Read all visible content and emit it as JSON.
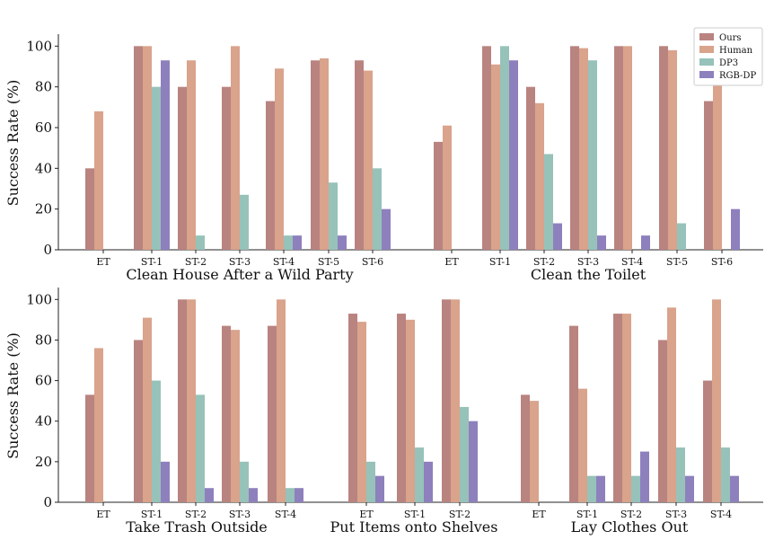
{
  "chart_data": [
    {
      "type": "bar",
      "ylabel": "Success Rate (%)",
      "ylim": [
        0,
        105
      ],
      "yticks": [
        0,
        20,
        40,
        60,
        80,
        100
      ],
      "legend": {
        "placement": "top-right",
        "entries": [
          "Ours",
          "Human",
          "DP3",
          "RGB-DP"
        ]
      },
      "series_colors": [
        "#b98380",
        "#d9a38c",
        "#96c2b9",
        "#8e80bd"
      ],
      "tasks": [
        {
          "title": "Clean House After a Wild Party",
          "categories": [
            "ET",
            "ST-1",
            "ST-2",
            "ST-3",
            "ST-4",
            "ST-5",
            "ST-6"
          ],
          "series": [
            {
              "name": "Ours",
              "values": [
                40,
                100,
                80,
                80,
                73,
                93,
                93
              ]
            },
            {
              "name": "Human",
              "values": [
                68,
                100,
                93,
                100,
                89,
                94,
                88
              ]
            },
            {
              "name": "DP3",
              "values": [
                null,
                80,
                7,
                27,
                7,
                33,
                40
              ]
            },
            {
              "name": "RGB-DP",
              "values": [
                null,
                93,
                0,
                0,
                7,
                7,
                20
              ]
            }
          ]
        },
        {
          "title": "Clean the Toilet",
          "categories": [
            "ET",
            "ST-1",
            "ST-2",
            "ST-3",
            "ST-4",
            "ST-5",
            "ST-6"
          ],
          "series": [
            {
              "name": "Ours",
              "values": [
                53,
                100,
                80,
                100,
                100,
                100,
                73
              ]
            },
            {
              "name": "Human",
              "values": [
                61,
                91,
                72,
                99,
                100,
                98,
                100
              ]
            },
            {
              "name": "DP3",
              "values": [
                null,
                100,
                47,
                93,
                0,
                13,
                0
              ]
            },
            {
              "name": "RGB-DP",
              "values": [
                null,
                93,
                13,
                7,
                7,
                0,
                20
              ]
            }
          ]
        },
        {
          "title": "Take Trash Outside",
          "categories": [
            "ET",
            "ST-1",
            "ST-2",
            "ST-3",
            "ST-4"
          ],
          "series": [
            {
              "name": "Ours",
              "values": [
                53,
                80,
                100,
                87,
                87
              ]
            },
            {
              "name": "Human",
              "values": [
                76,
                91,
                100,
                85,
                100
              ]
            },
            {
              "name": "DP3",
              "values": [
                null,
                60,
                53,
                20,
                7
              ]
            },
            {
              "name": "RGB-DP",
              "values": [
                null,
                20,
                7,
                7,
                7
              ]
            }
          ]
        },
        {
          "title": "Put Items onto Shelves",
          "categories": [
            "ET",
            "ST-1",
            "ST-2"
          ],
          "series": [
            {
              "name": "Ours",
              "values": [
                93,
                93,
                100
              ]
            },
            {
              "name": "Human",
              "values": [
                89,
                90,
                100
              ]
            },
            {
              "name": "DP3",
              "values": [
                20,
                27,
                47
              ]
            },
            {
              "name": "RGB-DP",
              "values": [
                13,
                20,
                40
              ]
            }
          ]
        },
        {
          "title": "Lay Clothes Out",
          "categories": [
            "ET",
            "ST-1",
            "ST-2",
            "ST-3",
            "ST-4"
          ],
          "series": [
            {
              "name": "Ours",
              "values": [
                53,
                87,
                93,
                80,
                60
              ]
            },
            {
              "name": "Human",
              "values": [
                50,
                56,
                93,
                96,
                100
              ]
            },
            {
              "name": "DP3",
              "values": [
                null,
                13,
                13,
                27,
                27
              ]
            },
            {
              "name": "RGB-DP",
              "values": [
                null,
                13,
                25,
                13,
                13
              ]
            }
          ]
        }
      ]
    }
  ]
}
